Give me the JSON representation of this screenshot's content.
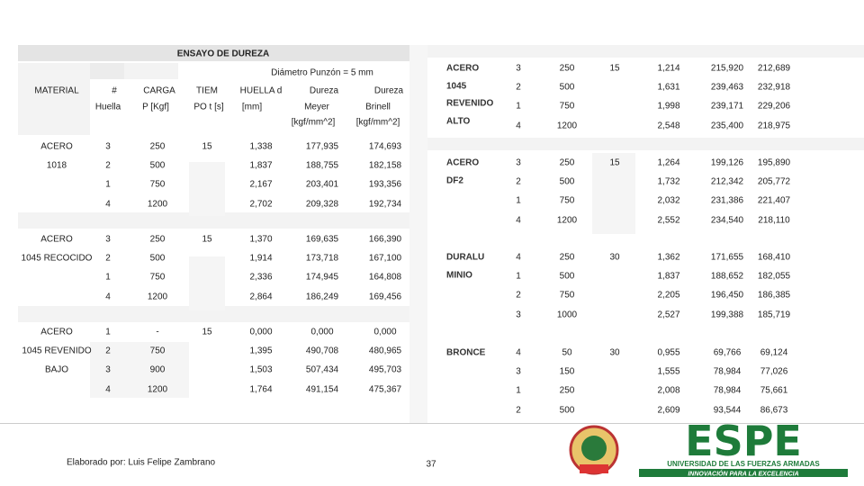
{
  "header": {
    "title": "ENSAYO DE DUREZA",
    "subtitle": "Diámetro Punzón = 5 mm"
  },
  "left_table": {
    "columns": [
      "MATERIAL",
      "#",
      "Huella",
      "CARGA",
      "P [Kgf]",
      "TIEM",
      "PO t [s]",
      "HUELLA d",
      "[mm]",
      "Dureza",
      "Meyer",
      "[kgf/mm^2]",
      "Dureza",
      "Brinell",
      "[kgf/mm^2]"
    ],
    "groups": [
      {
        "material": [
          "ACERO",
          "1018"
        ],
        "time": "15",
        "rows": [
          [
            "3",
            "250",
            "1,338",
            "177,935",
            "174,693"
          ],
          [
            "2",
            "500",
            "1,837",
            "188,755",
            "182,158"
          ],
          [
            "1",
            "750",
            "2,167",
            "203,401",
            "193,356"
          ],
          [
            "4",
            "1200",
            "2,702",
            "209,328",
            "192,734"
          ]
        ]
      },
      {
        "material": [
          "ACERO",
          "1045 RECOCIDO"
        ],
        "time": "15",
        "rows": [
          [
            "3",
            "250",
            "1,370",
            "169,635",
            "166,390"
          ],
          [
            "2",
            "500",
            "1,914",
            "173,718",
            "167,100"
          ],
          [
            "1",
            "750",
            "2,336",
            "174,945",
            "164,808"
          ],
          [
            "4",
            "1200",
            "2,864",
            "186,249",
            "169,456"
          ]
        ]
      },
      {
        "material": [
          "ACERO",
          "1045 REVENIDO",
          "BAJO"
        ],
        "time": "15",
        "rows": [
          [
            "1",
            "-",
            "0,000",
            "0,000",
            "0,000"
          ],
          [
            "2",
            "750",
            "1,395",
            "490,708",
            "480,965"
          ],
          [
            "3",
            "900",
            "1,503",
            "507,434",
            "495,703"
          ],
          [
            "4",
            "1200",
            "1,764",
            "491,154",
            "475,367"
          ]
        ]
      }
    ]
  },
  "right_table": {
    "groups": [
      {
        "material": [
          "ACERO",
          "1045",
          "REVENIDO",
          "ALTO"
        ],
        "time": "15",
        "rows": [
          [
            "3",
            "250",
            "1,214",
            "215,920",
            "212,689"
          ],
          [
            "2",
            "500",
            "1,631",
            "239,463",
            "232,918"
          ],
          [
            "1",
            "750",
            "1,998",
            "239,171",
            "229,206"
          ],
          [
            "4",
            "1200",
            "2,548",
            "235,400",
            "218,975"
          ]
        ]
      },
      {
        "material": [
          "ACERO",
          "DF2"
        ],
        "time": "15",
        "rows": [
          [
            "3",
            "250",
            "1,264",
            "199,126",
            "195,890"
          ],
          [
            "2",
            "500",
            "1,732",
            "212,342",
            "205,772"
          ],
          [
            "1",
            "750",
            "2,032",
            "231,386",
            "221,407"
          ],
          [
            "4",
            "1200",
            "2,552",
            "234,540",
            "218,110"
          ]
        ]
      },
      {
        "material": [
          "DURALU",
          "MINIO"
        ],
        "time": "30",
        "rows": [
          [
            "4",
            "250",
            "1,362",
            "171,655",
            "168,410"
          ],
          [
            "1",
            "500",
            "1,837",
            "188,652",
            "182,055"
          ],
          [
            "2",
            "750",
            "2,205",
            "196,450",
            "186,385"
          ],
          [
            "3",
            "1000",
            "2,527",
            "199,388",
            "185,719"
          ]
        ]
      },
      {
        "material": [
          "BRONCE"
        ],
        "time": "30",
        "rows": [
          [
            "4",
            "50",
            "0,955",
            "69,766",
            "69,124"
          ],
          [
            "3",
            "150",
            "1,555",
            "78,984",
            "77,026"
          ],
          [
            "1",
            "250",
            "2,008",
            "78,984",
            "75,661"
          ],
          [
            "2",
            "500",
            "2,609",
            "93,544",
            "86,673"
          ]
        ]
      }
    ]
  },
  "footer": {
    "author": "Elaborado por: Luis Felipe Zambrano",
    "page": "37"
  },
  "logo": {
    "name": "ESPE",
    "line1": "UNIVERSIDAD DE LAS FUERZAS ARMADAS",
    "line2": "INNOVACIÓN PARA LA EXCELENCIA"
  }
}
